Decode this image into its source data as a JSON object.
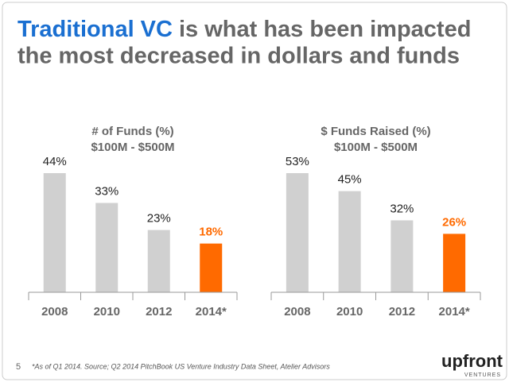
{
  "slide": {
    "title_highlight": "Traditional VC",
    "title_rest_line1": "is what has been impacted",
    "title_line2": "the most decreased in dollars and funds",
    "page_number": "5",
    "footnote": "*As of Q1 2014.  Source; Q2 2014 PitchBook US Venture Industry Data Sheet, Atelier Advisors",
    "logo": "upfront",
    "logo_sub": "VENTURES"
  },
  "chart_data": [
    {
      "type": "bar",
      "title": "# of Funds (%)",
      "subtitle": "$100M - $500M",
      "categories": [
        "2008",
        "2010",
        "2012",
        "2014*"
      ],
      "values": [
        44,
        33,
        23,
        18
      ],
      "value_labels": [
        "44%",
        "33%",
        "23%",
        "18%"
      ],
      "colors": [
        "#d0d0d0",
        "#d0d0d0",
        "#d0d0d0",
        "#ff6a00"
      ]
    },
    {
      "type": "bar",
      "title": "$ Funds Raised (%)",
      "subtitle": "$100M - $500M",
      "categories": [
        "2008",
        "2010",
        "2012",
        "2014*"
      ],
      "values": [
        53,
        45,
        32,
        26
      ],
      "value_labels": [
        "53%",
        "45%",
        "32%",
        "26%"
      ],
      "colors": [
        "#d0d0d0",
        "#d0d0d0",
        "#d0d0d0",
        "#ff6a00"
      ]
    }
  ]
}
